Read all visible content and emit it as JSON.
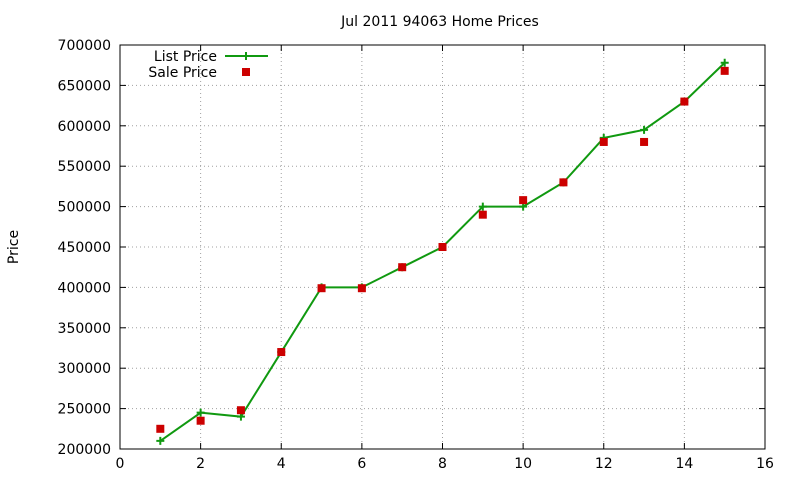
{
  "chart_data": {
    "type": "line",
    "title": "Jul 2011 94063 Home Prices",
    "xlabel": "",
    "ylabel": "Price",
    "xlim": [
      0,
      16
    ],
    "ylim": [
      200000,
      700000
    ],
    "xticks": [
      0,
      2,
      4,
      6,
      8,
      10,
      12,
      14,
      16
    ],
    "yticks": [
      200000,
      250000,
      300000,
      350000,
      400000,
      450000,
      500000,
      550000,
      600000,
      650000,
      700000
    ],
    "grid": true,
    "legend_position": "top-left",
    "series": [
      {
        "name": "List Price",
        "style": "line-with-plus-markers",
        "color": "#109910",
        "x": [
          1,
          2,
          3,
          4,
          5,
          6,
          7,
          8,
          9,
          10,
          11,
          12,
          13,
          14,
          15
        ],
        "y": [
          210000,
          245000,
          240000,
          320000,
          400000,
          400000,
          425000,
          450000,
          500000,
          500000,
          530000,
          585000,
          595000,
          630000,
          678000
        ]
      },
      {
        "name": "Sale Price",
        "style": "square-markers",
        "color": "#cc0000",
        "x": [
          1,
          2,
          3,
          4,
          5,
          6,
          7,
          8,
          9,
          10,
          11,
          12,
          13,
          14,
          15
        ],
        "y": [
          225000,
          235000,
          248000,
          320000,
          399000,
          399000,
          425000,
          450000,
          490000,
          508000,
          530000,
          580000,
          580000,
          630000,
          668000
        ]
      }
    ]
  }
}
